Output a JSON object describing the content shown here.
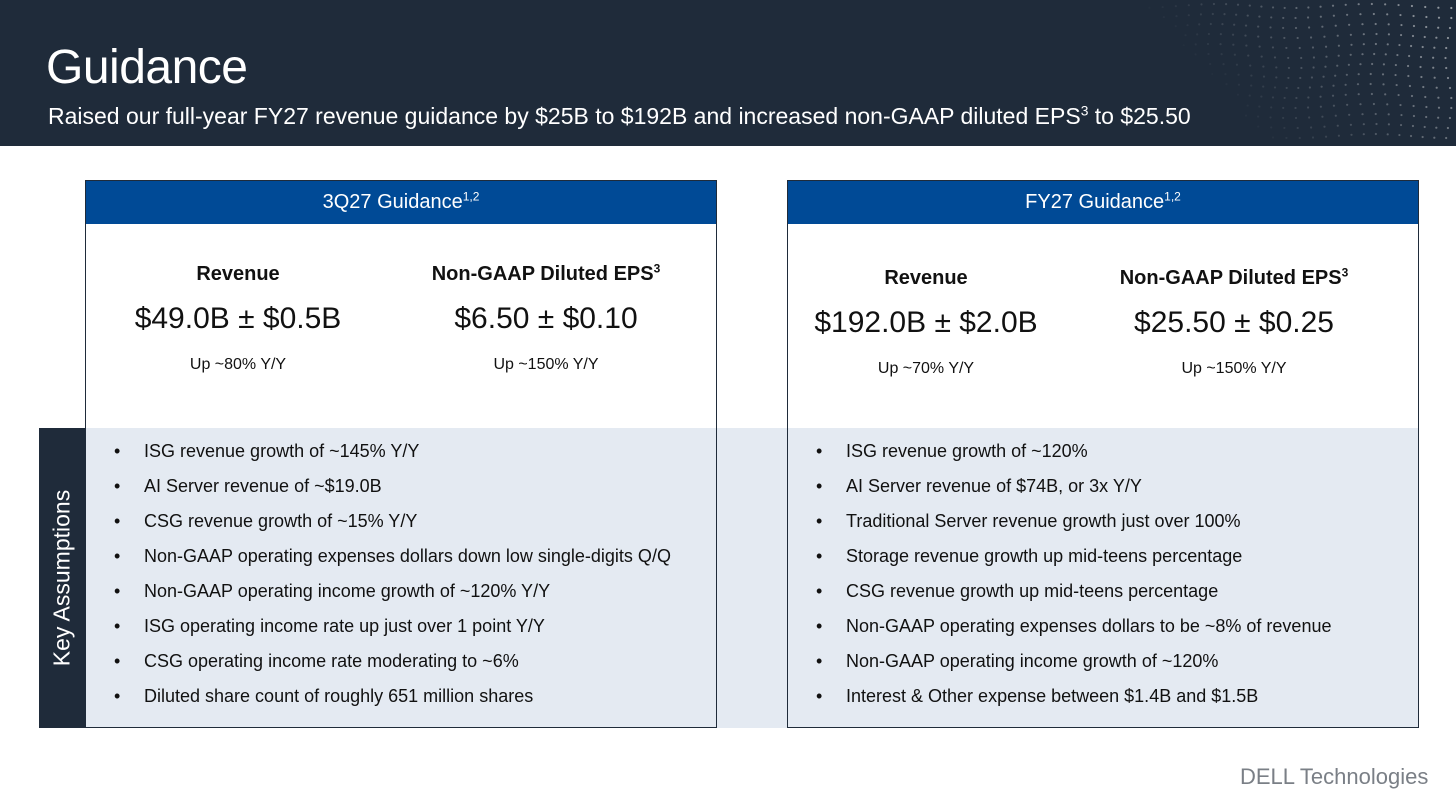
{
  "header": {
    "title": "Guidance",
    "subtitle_pre": "Raised our full-year FY27 revenue guidance by $25B to $192B and increased non-GAAP diluted EPS",
    "subtitle_sup": "3",
    "subtitle_post": " to $25.50"
  },
  "side_label": "Key Assumptions",
  "q3": {
    "title": "3Q27 Guidance",
    "title_sup": "1,2",
    "revenue": {
      "label": "Revenue",
      "value": "$49.0B ± $0.5B",
      "note": "Up ~80% Y/Y"
    },
    "eps": {
      "label": "Non-GAAP Diluted EPS",
      "label_sup": "3",
      "value": "$6.50 ± $0.10",
      "note": "Up ~150% Y/Y"
    },
    "assumptions": [
      "ISG revenue growth of ~145% Y/Y",
      "AI Server revenue of ~$19.0B",
      "CSG revenue growth of ~15% Y/Y",
      "Non-GAAP operating expenses dollars down low single-digits Q/Q",
      "Non-GAAP operating income growth of ~120% Y/Y",
      "ISG operating income rate up just over 1 point Y/Y",
      "CSG operating income rate moderating to ~6%",
      "Diluted share count of roughly 651 million shares"
    ]
  },
  "fy": {
    "title": "FY27 Guidance",
    "title_sup": "1,2",
    "revenue": {
      "label": "Revenue",
      "value": "$192.0B ± $2.0B",
      "note": "Up ~70% Y/Y"
    },
    "eps": {
      "label": "Non-GAAP Diluted EPS",
      "label_sup": "3",
      "value": "$25.50 ± $0.25",
      "note": "Up ~150% Y/Y"
    },
    "assumptions": [
      "ISG revenue growth of ~120%",
      "AI Server revenue of $74B, or 3x Y/Y",
      "Traditional Server revenue growth just over 100%",
      "Storage revenue growth up mid-teens percentage",
      "CSG revenue growth up mid-teens percentage",
      "Non-GAAP operating expenses dollars to be ~8% of revenue",
      "Non-GAAP operating income growth of ~120%",
      "Interest & Other expense between $1.4B and $1.5B"
    ]
  },
  "logo": "DELL Technologies",
  "colors": {
    "header_bg": "#1f2b3a",
    "box_header": "#004a96",
    "band": "#e4eaf2"
  }
}
